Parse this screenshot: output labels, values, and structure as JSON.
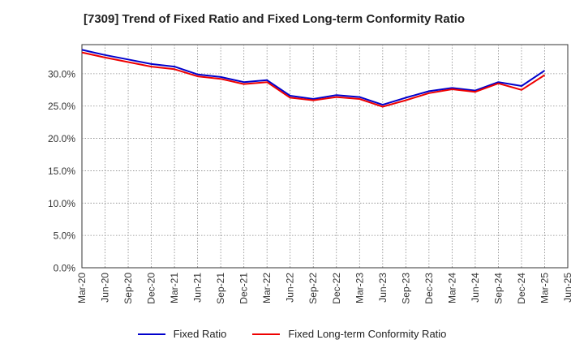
{
  "chart_data": {
    "type": "line",
    "title": "[7309]  Trend of Fixed Ratio and Fixed Long-term Conformity Ratio",
    "xlabel": "",
    "ylabel": "",
    "x": [
      "Mar-20",
      "Jun-20",
      "Sep-20",
      "Dec-20",
      "Mar-21",
      "Jun-21",
      "Sep-21",
      "Dec-21",
      "Mar-22",
      "Jun-22",
      "Sep-22",
      "Dec-22",
      "Mar-23",
      "Jun-23",
      "Sep-23",
      "Dec-23",
      "Mar-24",
      "Jun-24",
      "Sep-24",
      "Dec-24",
      "Mar-25",
      "Jun-25"
    ],
    "series": [
      {
        "name": "Fixed Ratio",
        "color": "#0000cc",
        "values": [
          33.7,
          32.9,
          32.2,
          31.5,
          31.1,
          29.9,
          29.5,
          28.7,
          29.0,
          26.6,
          26.1,
          26.7,
          26.4,
          25.2,
          26.3,
          27.3,
          27.8,
          27.4,
          28.7,
          28.1,
          30.5,
          null
        ]
      },
      {
        "name": "Fixed Long-term Conformity Ratio",
        "color": "#ee0000",
        "values": [
          33.3,
          32.5,
          31.8,
          31.1,
          30.7,
          29.6,
          29.2,
          28.4,
          28.7,
          26.3,
          25.9,
          26.4,
          26.1,
          24.9,
          25.9,
          27.0,
          27.6,
          27.2,
          28.5,
          27.5,
          29.8,
          null
        ]
      }
    ],
    "yticks": [
      "0.0%",
      "5.0%",
      "10.0%",
      "15.0%",
      "20.0%",
      "25.0%",
      "30.0%"
    ],
    "ylim": [
      0,
      34.5
    ],
    "grid": true,
    "legend_position": "bottom"
  }
}
